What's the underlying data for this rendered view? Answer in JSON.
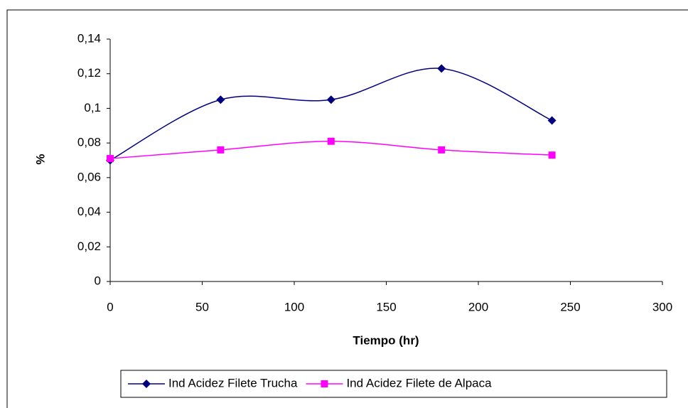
{
  "chart_data": {
    "type": "line",
    "x_label": "Tiempo (hr)",
    "y_label": "%",
    "x": [
      0,
      60,
      120,
      180,
      240
    ],
    "series": [
      {
        "name": "Ind Acidez Filete Trucha",
        "color": "#000080",
        "marker": "diamond",
        "values": [
          0.07,
          0.105,
          0.105,
          0.123,
          0.093
        ]
      },
      {
        "name": "Ind Acidez Filete de Alpaca",
        "color": "#ff00ff",
        "marker": "square",
        "values": [
          0.071,
          0.076,
          0.081,
          0.076,
          0.073
        ]
      }
    ],
    "xlim": [
      0,
      300
    ],
    "xticks": [
      0,
      50,
      100,
      150,
      200,
      250,
      300
    ],
    "ylim": [
      0,
      0.14
    ],
    "yticks": [
      0,
      {
        "value": 0.02,
        "label": "0,02"
      },
      {
        "value": 0.04,
        "label": "0,04"
      },
      {
        "value": 0.06,
        "label": "0,06"
      },
      {
        "value": 0.08,
        "label": "0,08"
      },
      {
        "value": 0.1,
        "label": "0,1"
      },
      {
        "value": 0.12,
        "label": "0,12"
      },
      {
        "value": 0.14,
        "label": "0,14"
      }
    ],
    "grid": false,
    "smooth": true,
    "legend": "bottom"
  }
}
